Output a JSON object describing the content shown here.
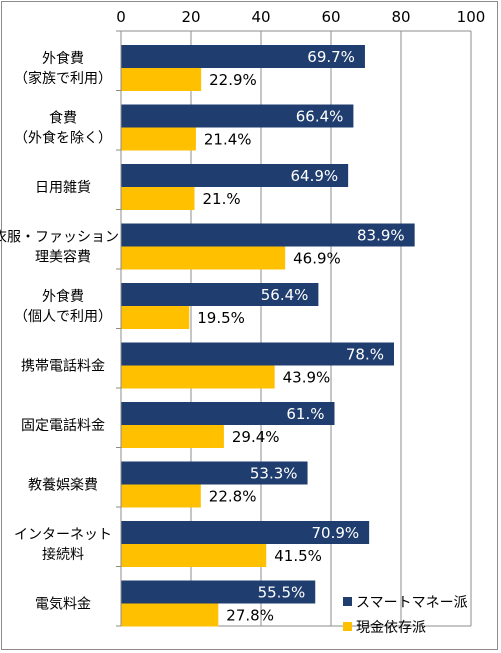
{
  "chart_data": {
    "type": "bar",
    "orientation": "horizontal",
    "xlim": [
      0,
      100
    ],
    "x_ticks": [
      "0",
      "20",
      "40",
      "60",
      "80",
      "100"
    ],
    "grid": true,
    "legend_position": "bottom-right",
    "categories": [
      [
        "外食費",
        "（家族で利用）"
      ],
      [
        "食費",
        "（外食を除く）"
      ],
      [
        "日用雑貨"
      ],
      [
        "衣服・ファッション・",
        "理美容費"
      ],
      [
        "外食費",
        "（個人で利用）"
      ],
      [
        "携帯電話料金"
      ],
      [
        "固定電話料金"
      ],
      [
        "教養娯楽費"
      ],
      [
        "インターネット",
        "接続料"
      ],
      [
        "電気料金"
      ]
    ],
    "series": [
      {
        "name": "スマートマネー派",
        "color": "#1f3d6e",
        "values": [
          69.7,
          66.4,
          64.9,
          83.9,
          56.4,
          78,
          61,
          53.3,
          70.9,
          55.5
        ],
        "labels": [
          "69.7%",
          "66.4%",
          "64.9%",
          "83.9%",
          "56.4%",
          "78.%",
          "61.%",
          "53.3%",
          "70.9%",
          "55.5%"
        ]
      },
      {
        "name": "現金依存派",
        "color": "#ffc000",
        "values": [
          22.9,
          21.4,
          21,
          46.9,
          19.5,
          43.9,
          29.4,
          22.8,
          41.5,
          27.8
        ],
        "labels": [
          "22.9%",
          "21.4%",
          "21.%",
          "46.9%",
          "19.5%",
          "43.9%",
          "29.4%",
          "22.8%",
          "41.5%",
          "27.8%"
        ]
      }
    ]
  }
}
